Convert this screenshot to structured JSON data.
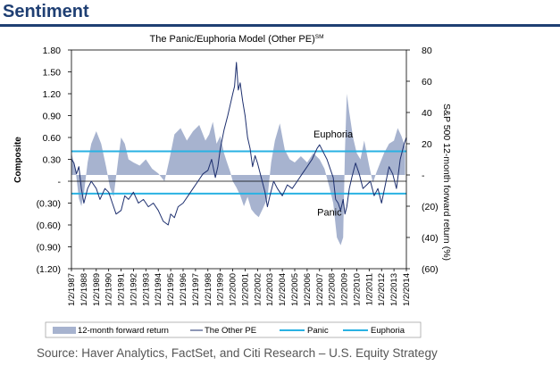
{
  "page_title": "Sentiment",
  "source": "Source: Haver Analytics, FactSet, and Citi Research – U.S. Equity Strategy",
  "colors": {
    "title": "#1f3f73",
    "area": "#a7b3cf",
    "pe_line": "#1d2f6e",
    "threshold": "#2ab2e3",
    "axis": "#000000"
  },
  "chart_data": {
    "type": "line",
    "title": "The Panic/Euphoria Model (Other PE)",
    "title_superscript": "SM",
    "ylabel_left": "Composite",
    "ylabel_right": "S&P 500 12-month forward return (%)",
    "y_left_range": [
      -1.2,
      1.8
    ],
    "y_left_ticks": [
      1.8,
      1.5,
      1.2,
      0.9,
      0.6,
      0.3,
      0,
      -0.3,
      -0.6,
      -0.9,
      -1.2
    ],
    "y_left_tick_labels": [
      "1.80",
      "1.50",
      "1.20",
      "0.90",
      "0.60",
      "0.30",
      "-",
      "(0.30)",
      "(0.60)",
      "(0.90)",
      "(1.20)"
    ],
    "y_right_range": [
      -60,
      80
    ],
    "y_right_ticks": [
      80,
      60,
      40,
      20,
      0,
      -20,
      -40,
      -60
    ],
    "y_right_tick_labels": [
      "80",
      "60",
      "40",
      "20",
      "-",
      "(20)",
      "(40)",
      "(60)"
    ],
    "x_range": [
      1987.0,
      2014.0
    ],
    "x_tick_labels": [
      "1/2/1987",
      "1/2/1988",
      "1/2/1989",
      "1/2/1990",
      "1/2/1991",
      "1/2/1992",
      "1/2/1993",
      "1/2/1994",
      "1/2/1995",
      "1/2/1996",
      "1/2/1997",
      "1/2/1998",
      "1/2/1999",
      "1/2/2000",
      "1/2/2001",
      "1/2/2002",
      "1/2/2003",
      "1/2/2004",
      "1/2/2005",
      "1/2/2006",
      "1/2/2007",
      "1/2/2008",
      "1/2/2009",
      "1/2/2010",
      "1/2/2011",
      "1/2/2012",
      "1/2/2013",
      "1/2/2014"
    ],
    "thresholds": [
      {
        "name": "Euphoria",
        "value": 0.41
      },
      {
        "name": "Panic",
        "value": -0.17
      }
    ],
    "annotations": [
      {
        "text": "Euphoria",
        "x": 2008.1,
        "y": 0.6
      },
      {
        "text": "Panic",
        "x": 2007.8,
        "y": -0.47
      }
    ],
    "legend": [
      "12-month forward return",
      "The Other PE",
      "Panic",
      "Euphoria"
    ],
    "series": [
      {
        "name": "12-month forward return",
        "axis": "right",
        "kind": "area",
        "x": [
          1987.0,
          1987.3,
          1987.6,
          1987.8,
          1988.0,
          1988.3,
          1988.6,
          1989.0,
          1989.4,
          1989.8,
          1990.1,
          1990.4,
          1990.8,
          1991.0,
          1991.3,
          1991.6,
          1992.0,
          1992.5,
          1993.0,
          1993.5,
          1994.0,
          1994.5,
          1994.9,
          1995.3,
          1995.8,
          1996.3,
          1996.8,
          1997.3,
          1997.8,
          1998.1,
          1998.4,
          1998.7,
          1999.0,
          1999.3,
          1999.5,
          1999.8,
          2000.0,
          2000.3,
          2000.6,
          2000.9,
          2001.2,
          2001.5,
          2001.8,
          2002.1,
          2002.4,
          2002.8,
          2003.1,
          2003.4,
          2003.8,
          2004.2,
          2004.6,
          2005.0,
          2005.5,
          2006.0,
          2006.5,
          2007.0,
          2007.4,
          2007.8,
          2008.1,
          2008.4,
          2008.7,
          2008.9,
          2009.05,
          2009.2,
          2009.4,
          2009.7,
          2010.0,
          2010.3,
          2010.6,
          2011.0,
          2011.3,
          2011.6,
          2011.9,
          2012.2,
          2012.6,
          2013.0,
          2013.3,
          2013.6,
          2013.9
        ],
        "values": [
          14,
          5,
          -15,
          -20,
          -12,
          8,
          20,
          28,
          20,
          5,
          -8,
          -14,
          12,
          24,
          20,
          10,
          8,
          6,
          10,
          4,
          1,
          -4,
          10,
          26,
          30,
          22,
          28,
          32,
          22,
          26,
          34,
          20,
          25,
          14,
          9,
          2,
          -4,
          -8,
          -13,
          -20,
          -14,
          -22,
          -25,
          -27,
          -22,
          -15,
          8,
          22,
          33,
          16,
          10,
          8,
          12,
          8,
          14,
          10,
          4,
          -8,
          -18,
          -40,
          -45,
          -40,
          15,
          52,
          40,
          24,
          14,
          10,
          22,
          6,
          -5,
          2,
          8,
          14,
          20,
          22,
          30,
          25,
          18
        ]
      },
      {
        "name": "The Other PE",
        "axis": "left",
        "kind": "line",
        "x": [
          1987.0,
          1987.2,
          1987.4,
          1987.6,
          1987.8,
          1988.0,
          1988.3,
          1988.6,
          1989.0,
          1989.3,
          1989.7,
          1990.0,
          1990.3,
          1990.6,
          1991.0,
          1991.3,
          1991.6,
          1992.0,
          1992.4,
          1992.8,
          1993.2,
          1993.6,
          1994.0,
          1994.4,
          1994.8,
          1995.0,
          1995.3,
          1995.6,
          1996.0,
          1996.4,
          1996.8,
          1997.2,
          1997.6,
          1998.0,
          1998.3,
          1998.6,
          1998.8,
          1999.0,
          1999.3,
          1999.6,
          1999.8,
          2000.0,
          2000.15,
          2000.3,
          2000.45,
          2000.6,
          2000.8,
          2001.0,
          2001.2,
          2001.4,
          2001.6,
          2001.8,
          2002.0,
          2002.3,
          2002.6,
          2002.8,
          2003.0,
          2003.3,
          2003.6,
          2004.0,
          2004.4,
          2004.8,
          2005.2,
          2005.6,
          2006.0,
          2006.4,
          2006.8,
          2007.0,
          2007.3,
          2007.6,
          2007.9,
          2008.1,
          2008.3,
          2008.5,
          2008.7,
          2008.9,
          2009.05,
          2009.2,
          2009.4,
          2009.6,
          2009.9,
          2010.2,
          2010.5,
          2010.8,
          2011.1,
          2011.4,
          2011.7,
          2012.0,
          2012.3,
          2012.6,
          2012.9,
          2013.2,
          2013.5,
          2013.8,
          2014.0
        ],
        "values": [
          0.3,
          0.25,
          0.1,
          0.2,
          -0.1,
          -0.3,
          -0.1,
          0.0,
          -0.1,
          -0.25,
          -0.1,
          -0.15,
          -0.3,
          -0.45,
          -0.4,
          -0.2,
          -0.25,
          -0.15,
          -0.3,
          -0.25,
          -0.35,
          -0.3,
          -0.4,
          -0.55,
          -0.6,
          -0.45,
          -0.5,
          -0.35,
          -0.3,
          -0.2,
          -0.1,
          0.0,
          0.1,
          0.15,
          0.3,
          0.05,
          0.2,
          0.45,
          0.7,
          0.9,
          1.05,
          1.2,
          1.3,
          1.63,
          1.25,
          1.35,
          1.1,
          0.9,
          0.6,
          0.45,
          0.2,
          0.35,
          0.25,
          0.05,
          -0.15,
          -0.35,
          -0.2,
          0.0,
          -0.1,
          -0.2,
          -0.05,
          -0.1,
          0.0,
          0.1,
          0.2,
          0.3,
          0.45,
          0.5,
          0.4,
          0.3,
          0.15,
          0.05,
          -0.25,
          -0.3,
          -0.4,
          -0.25,
          -0.45,
          -0.35,
          -0.1,
          0.05,
          0.25,
          0.1,
          -0.1,
          -0.05,
          0.0,
          -0.2,
          -0.1,
          -0.3,
          -0.05,
          0.2,
          0.1,
          -0.1,
          0.3,
          0.5,
          0.6
        ]
      }
    ]
  }
}
